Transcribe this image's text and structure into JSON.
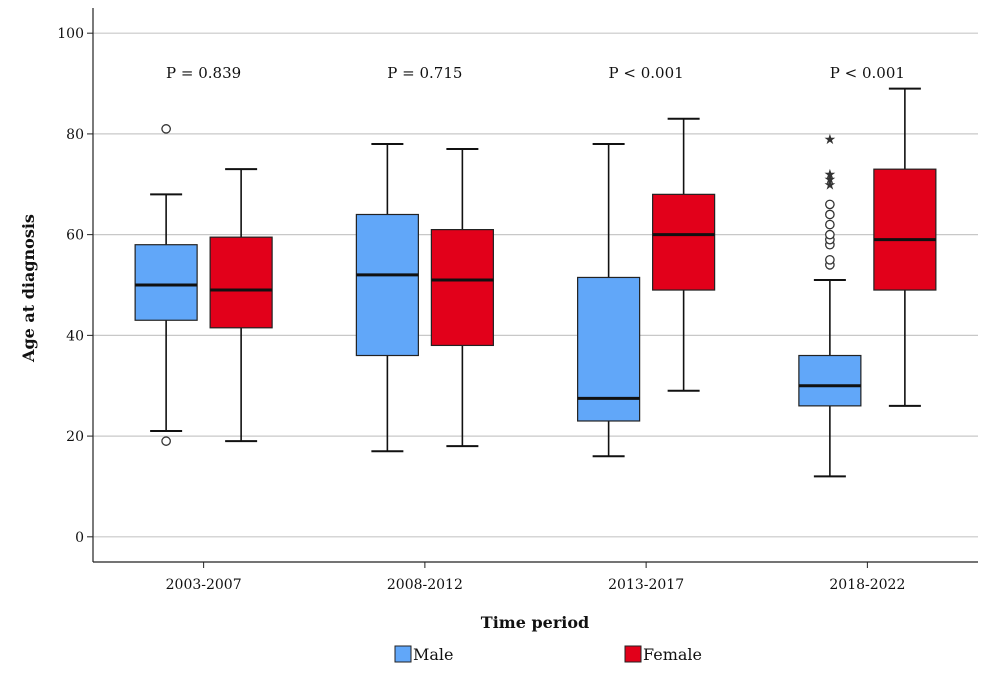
{
  "chart_data": {
    "type": "boxplot",
    "xlabel": "Time period",
    "ylabel": "Age at diagnosis",
    "ylim": [
      -5,
      105
    ],
    "yticks": [
      0,
      20,
      40,
      60,
      80,
      100
    ],
    "grid": "horizontal",
    "legend_position": "bottom",
    "categories": [
      "2003-2007",
      "2008-2012",
      "2013-2017",
      "2018-2022"
    ],
    "pvalues": [
      "P = 0.839",
      "P = 0.715",
      "P < 0.001",
      "P < 0.001"
    ],
    "series": [
      {
        "name": "Male",
        "color": "#61a7f9",
        "boxes": [
          {
            "min": 21,
            "q1": 43,
            "median": 50,
            "q3": 58,
            "max": 68,
            "outliers": [
              81,
              19
            ],
            "extremes": []
          },
          {
            "min": 17,
            "q1": 36,
            "median": 52,
            "q3": 64,
            "max": 78,
            "outliers": [],
            "extremes": []
          },
          {
            "min": 16,
            "q1": 23,
            "median": 27.5,
            "q3": 51.5,
            "max": 78,
            "outliers": [],
            "extremes": []
          },
          {
            "min": 12,
            "q1": 26,
            "median": 30,
            "q3": 36,
            "max": 51,
            "outliers": [
              54,
              55,
              58,
              59,
              60,
              62,
              64,
              66
            ],
            "extremes": [
              70,
              71,
              72,
              79
            ]
          }
        ]
      },
      {
        "name": "Female",
        "color": "#e2001a",
        "boxes": [
          {
            "min": 19,
            "q1": 41.5,
            "median": 49,
            "q3": 59.5,
            "max": 73,
            "outliers": [],
            "extremes": []
          },
          {
            "min": 18,
            "q1": 38,
            "median": 51,
            "q3": 61,
            "max": 77,
            "outliers": [],
            "extremes": []
          },
          {
            "min": 29,
            "q1": 49,
            "median": 60,
            "q3": 68,
            "max": 83,
            "outliers": [],
            "extremes": []
          },
          {
            "min": 26,
            "q1": 49,
            "median": 59,
            "q3": 73,
            "max": 89,
            "outliers": [],
            "extremes": []
          }
        ]
      }
    ]
  }
}
